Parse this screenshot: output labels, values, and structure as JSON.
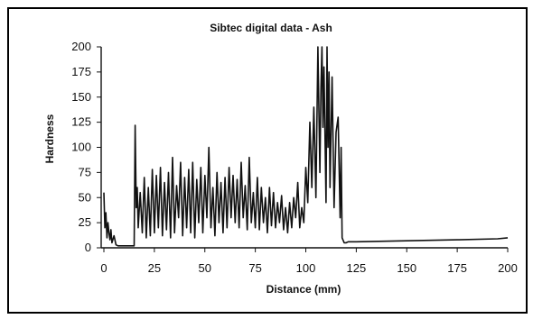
{
  "chart_data": {
    "type": "line",
    "title": "Sibtec digital data - Ash",
    "xlabel": "Distance (mm)",
    "ylabel": "Hardness",
    "xlim": [
      0,
      200
    ],
    "ylim": [
      0,
      200
    ],
    "x_ticks": [
      "0",
      "25",
      "50",
      "75",
      "100",
      "125",
      "150",
      "175",
      "200"
    ],
    "y_ticks": [
      "0",
      "25",
      "50",
      "75",
      "100",
      "125",
      "150",
      "175",
      "200"
    ],
    "grid": false,
    "series": [
      {
        "x": [
          0,
          0.5,
          1,
          1.5,
          2,
          2.5,
          3,
          3.5,
          4,
          5,
          6,
          7,
          8,
          10,
          12,
          14,
          15,
          15.5,
          16,
          16.5,
          17,
          18,
          19,
          20,
          21,
          22,
          23,
          24,
          25,
          26,
          27,
          28,
          29,
          30,
          31,
          32,
          33,
          34,
          35,
          36,
          37,
          38,
          39,
          40,
          41,
          42,
          43,
          44,
          45,
          46,
          47,
          48,
          49,
          50,
          51,
          52,
          53,
          54,
          55,
          56,
          57,
          58,
          59,
          60,
          61,
          62,
          63,
          64,
          65,
          66,
          67,
          68,
          69,
          70,
          71,
          72,
          73,
          74,
          75,
          76,
          77,
          78,
          79,
          80,
          81,
          82,
          83,
          84,
          85,
          86,
          87,
          88,
          89,
          90,
          91,
          92,
          93,
          94,
          95,
          96,
          97,
          98,
          99,
          100,
          101,
          102,
          103,
          104,
          105,
          106,
          107,
          107.5,
          108,
          108.5,
          109,
          110,
          110.5,
          111,
          111.5,
          112,
          113,
          114,
          115,
          116,
          117,
          117.5,
          118,
          119,
          120,
          121,
          125,
          150,
          175,
          195,
          200
        ],
        "values": [
          55,
          20,
          35,
          10,
          25,
          15,
          8,
          18,
          5,
          12,
          3,
          2,
          2,
          2,
          2,
          2,
          2,
          122,
          40,
          60,
          20,
          55,
          15,
          70,
          10,
          60,
          12,
          78,
          15,
          72,
          20,
          80,
          12,
          65,
          18,
          75,
          10,
          90,
          15,
          62,
          30,
          85,
          12,
          70,
          20,
          78,
          15,
          85,
          10,
          68,
          25,
          80,
          15,
          72,
          30,
          100,
          20,
          60,
          12,
          75,
          25,
          65,
          15,
          70,
          20,
          80,
          30,
          72,
          25,
          68,
          20,
          85,
          30,
          62,
          18,
          90,
          25,
          55,
          20,
          70,
          18,
          60,
          25,
          50,
          15,
          60,
          22,
          55,
          20,
          45,
          25,
          52,
          18,
          40,
          15,
          45,
          20,
          50,
          30,
          65,
          20,
          40,
          25,
          80,
          45,
          125,
          60,
          140,
          50,
          200,
          75,
          160,
          200,
          120,
          180,
          45,
          200,
          100,
          175,
          60,
          170,
          40,
          115,
          130,
          30,
          100,
          10,
          5,
          5,
          6,
          6,
          7,
          8,
          9,
          10
        ]
      }
    ]
  }
}
